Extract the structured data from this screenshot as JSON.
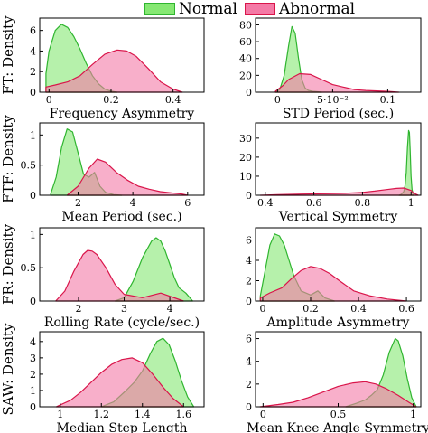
{
  "legend": {
    "entries": [
      {
        "name": "Normal",
        "fill": "#86e873",
        "stroke": "#2fb52f"
      },
      {
        "name": "Abnormal",
        "fill": "#f47aa6",
        "stroke": "#d9154a"
      }
    ]
  },
  "colors": {
    "normal_fill": "#86e873",
    "normal_stroke": "#2fb52f",
    "abnormal_fill": "#f47aa6",
    "abnormal_stroke": "#d9154a"
  },
  "row_labels": [
    "FT: Density",
    "FTF: Density",
    "FR: Density",
    "SAW: Density"
  ],
  "chart_data": [
    {
      "type": "area",
      "row": 0,
      "col": 0,
      "xlabel": "Frequency Asymmetry",
      "xlim": [
        -0.03,
        0.5
      ],
      "ylim": [
        0,
        7.2
      ],
      "xticks": [
        {
          "v": 0,
          "label": "0"
        },
        {
          "v": 0.2,
          "label": "0.2"
        },
        {
          "v": 0.4,
          "label": "0.4"
        }
      ],
      "yticks": [
        {
          "v": 0,
          "label": "0"
        },
        {
          "v": 2,
          "label": "2"
        },
        {
          "v": 4,
          "label": "4"
        },
        {
          "v": 6,
          "label": "6"
        }
      ],
      "series": [
        {
          "name": "Normal",
          "x": [
            -0.01,
            0.0,
            0.02,
            0.04,
            0.06,
            0.08,
            0.1,
            0.12,
            0.14,
            0.16,
            0.18,
            0.2,
            0.22
          ],
          "y": [
            1.8,
            4.0,
            6.0,
            6.6,
            6.3,
            5.4,
            4.2,
            2.8,
            1.6,
            0.8,
            0.3,
            0.1,
            0
          ]
        },
        {
          "name": "Abnormal",
          "x": [
            -0.01,
            0.02,
            0.06,
            0.1,
            0.14,
            0.18,
            0.22,
            0.25,
            0.28,
            0.32,
            0.36,
            0.4,
            0.43
          ],
          "y": [
            0.5,
            0.7,
            1.0,
            1.6,
            2.7,
            3.7,
            4.1,
            4.0,
            3.5,
            2.3,
            1.0,
            0.3,
            0
          ]
        }
      ]
    },
    {
      "type": "area",
      "row": 0,
      "col": 1,
      "xlabel": "STD Period (sec.)",
      "xlim": [
        -0.02,
        0.13
      ],
      "ylim": [
        0,
        88
      ],
      "xticks": [
        {
          "v": 0,
          "label": "0"
        },
        {
          "v": 0.05,
          "label": "5·10⁻²"
        },
        {
          "v": 0.1,
          "label": "0.1"
        }
      ],
      "yticks": [
        {
          "v": 0,
          "label": "0"
        },
        {
          "v": 20,
          "label": "20"
        },
        {
          "v": 40,
          "label": "40"
        },
        {
          "v": 60,
          "label": "60"
        },
        {
          "v": 80,
          "label": "80"
        }
      ],
      "series": [
        {
          "name": "Normal",
          "x": [
            -0.002,
            0.002,
            0.006,
            0.01,
            0.013,
            0.016,
            0.019,
            0.022,
            0.025,
            0.028,
            0.032,
            0.036,
            0.04
          ],
          "y": [
            0,
            3,
            20,
            55,
            78,
            70,
            40,
            15,
            5,
            2,
            1,
            0.5,
            0
          ]
        },
        {
          "name": "Abnormal",
          "x": [
            -0.002,
            0.005,
            0.01,
            0.02,
            0.03,
            0.04,
            0.05,
            0.06,
            0.07,
            0.08,
            0.09,
            0.1,
            0.11
          ],
          "y": [
            1,
            8,
            15,
            22,
            21,
            15,
            9,
            6,
            3,
            2,
            1.5,
            1,
            0
          ]
        }
      ]
    },
    {
      "type": "area",
      "row": 1,
      "col": 0,
      "xlabel": "Mean Period (sec.)",
      "xlim": [
        0.6,
        6.6
      ],
      "ylim": [
        0,
        1.2
      ],
      "xticks": [
        {
          "v": 2,
          "label": "2"
        },
        {
          "v": 4,
          "label": "4"
        },
        {
          "v": 6,
          "label": "6"
        }
      ],
      "yticks": [
        {
          "v": 0,
          "label": "0"
        },
        {
          "v": 0.5,
          "label": "0.5"
        },
        {
          "v": 1,
          "label": "1"
        }
      ],
      "series": [
        {
          "name": "Normal",
          "x": [
            1.0,
            1.2,
            1.4,
            1.6,
            1.8,
            2.0,
            2.2,
            2.4,
            2.6,
            2.8,
            3.0,
            3.3,
            3.6
          ],
          "y": [
            0.02,
            0.3,
            0.8,
            1.1,
            1.05,
            0.7,
            0.35,
            0.3,
            0.38,
            0.15,
            0.05,
            0.01,
            0
          ]
        },
        {
          "name": "Abnormal",
          "x": [
            1.6,
            2.0,
            2.4,
            2.7,
            3.0,
            3.4,
            3.8,
            4.2,
            4.6,
            5.0,
            5.4,
            5.8,
            6.0
          ],
          "y": [
            0,
            0.15,
            0.45,
            0.6,
            0.55,
            0.38,
            0.25,
            0.15,
            0.1,
            0.06,
            0.04,
            0.02,
            0
          ]
        }
      ]
    },
    {
      "type": "area",
      "row": 1,
      "col": 1,
      "xlabel": "Vertical Symmetry",
      "xlim": [
        0.36,
        1.04
      ],
      "ylim": [
        0,
        38
      ],
      "xticks": [
        {
          "v": 0.4,
          "label": "0.4"
        },
        {
          "v": 0.6,
          "label": "0.6"
        },
        {
          "v": 0.8,
          "label": "0.8"
        },
        {
          "v": 1,
          "label": "1"
        }
      ],
      "yticks": [
        {
          "v": 0,
          "label": "0"
        },
        {
          "v": 10,
          "label": "10"
        },
        {
          "v": 20,
          "label": "20"
        },
        {
          "v": 30,
          "label": "30"
        }
      ],
      "series": [
        {
          "name": "Normal",
          "x": [
            0.95,
            0.96,
            0.97,
            0.975,
            0.98,
            0.985,
            0.99,
            0.993,
            0.996,
            1.0,
            1.004,
            1.008,
            1.012
          ],
          "y": [
            0,
            0.5,
            2,
            5,
            12,
            25,
            34,
            33,
            24,
            10,
            3,
            1,
            0
          ]
        },
        {
          "name": "Abnormal",
          "x": [
            0.38,
            0.45,
            0.55,
            0.65,
            0.72,
            0.8,
            0.85,
            0.9,
            0.94,
            0.97,
            1.0,
            1.01,
            1.03
          ],
          "y": [
            0,
            0.3,
            0.6,
            0.8,
            1.0,
            1.5,
            2.2,
            3.0,
            3.6,
            3.8,
            2.5,
            1.2,
            0
          ]
        }
      ]
    },
    {
      "type": "area",
      "row": 2,
      "col": 0,
      "xlabel": "Rolling Rate (cycle/sec.)",
      "xlim": [
        1.15,
        4.75
      ],
      "ylim": [
        0,
        1.1
      ],
      "xticks": [
        {
          "v": 2,
          "label": "2"
        },
        {
          "v": 3,
          "label": "3"
        },
        {
          "v": 4,
          "label": "4"
        }
      ],
      "yticks": [
        {
          "v": 0,
          "label": "0"
        },
        {
          "v": 0.5,
          "label": "0.5"
        },
        {
          "v": 1,
          "label": "1"
        }
      ],
      "series": [
        {
          "name": "Normal",
          "x": [
            2.8,
            3.0,
            3.2,
            3.4,
            3.6,
            3.7,
            3.8,
            3.9,
            4.0,
            4.1,
            4.2,
            4.35,
            4.5
          ],
          "y": [
            0,
            0.05,
            0.3,
            0.65,
            0.9,
            0.95,
            0.9,
            0.75,
            0.55,
            0.35,
            0.2,
            0.12,
            0
          ]
        },
        {
          "name": "Abnormal",
          "x": [
            1.5,
            1.7,
            1.9,
            2.1,
            2.2,
            2.3,
            2.4,
            2.6,
            2.8,
            3.0,
            3.4,
            3.8,
            4.3
          ],
          "y": [
            0,
            0.15,
            0.45,
            0.7,
            0.76,
            0.75,
            0.7,
            0.5,
            0.25,
            0.1,
            0.05,
            0.12,
            0
          ]
        }
      ]
    },
    {
      "type": "area",
      "row": 2,
      "col": 1,
      "xlabel": "Amplitude Asymmetry",
      "xlim": [
        -0.03,
        0.66
      ],
      "ylim": [
        0,
        7.2
      ],
      "xticks": [
        {
          "v": 0,
          "label": "0"
        },
        {
          "v": 0.2,
          "label": "0.2"
        },
        {
          "v": 0.4,
          "label": "0.4"
        },
        {
          "v": 0.6,
          "label": "0.6"
        }
      ],
      "yticks": [
        {
          "v": 0,
          "label": "0"
        },
        {
          "v": 2,
          "label": "2"
        },
        {
          "v": 4,
          "label": "4"
        },
        {
          "v": 6,
          "label": "6"
        }
      ],
      "series": [
        {
          "name": "Normal",
          "x": [
            -0.01,
            0.01,
            0.03,
            0.05,
            0.07,
            0.09,
            0.11,
            0.13,
            0.16,
            0.2,
            0.23,
            0.26,
            0.3
          ],
          "y": [
            0.5,
            3.0,
            5.5,
            6.6,
            6.4,
            5.5,
            4.0,
            2.5,
            1.0,
            0.6,
            1.0,
            0.3,
            0
          ]
        },
        {
          "name": "Abnormal",
          "x": [
            -0.01,
            0.03,
            0.08,
            0.12,
            0.16,
            0.2,
            0.24,
            0.28,
            0.32,
            0.38,
            0.45,
            0.52,
            0.6
          ],
          "y": [
            0.3,
            0.8,
            1.3,
            2.2,
            3.0,
            3.4,
            3.2,
            2.7,
            2.0,
            1.0,
            0.5,
            0.2,
            0
          ]
        }
      ]
    },
    {
      "type": "area",
      "row": 3,
      "col": 0,
      "xlabel": "Median Step Length",
      "xlim": [
        0.9,
        1.7
      ],
      "ylim": [
        0,
        4.6
      ],
      "xticks": [
        {
          "v": 1,
          "label": "1"
        },
        {
          "v": 1.2,
          "label": "1.2"
        },
        {
          "v": 1.4,
          "label": "1.4"
        },
        {
          "v": 1.6,
          "label": "1.6"
        }
      ],
      "yticks": [
        {
          "v": 0,
          "label": "0"
        },
        {
          "v": 1,
          "label": "1"
        },
        {
          "v": 2,
          "label": "2"
        },
        {
          "v": 3,
          "label": "3"
        },
        {
          "v": 4,
          "label": "4"
        }
      ],
      "series": [
        {
          "name": "Normal",
          "x": [
            1.2,
            1.26,
            1.32,
            1.36,
            1.4,
            1.44,
            1.47,
            1.5,
            1.53,
            1.56,
            1.59,
            1.62,
            1.65
          ],
          "y": [
            0,
            0.3,
            1.0,
            1.5,
            2.2,
            3.3,
            4.0,
            4.2,
            3.8,
            2.8,
            1.6,
            0.6,
            0
          ]
        },
        {
          "name": "Abnormal",
          "x": [
            0.98,
            1.05,
            1.1,
            1.15,
            1.2,
            1.25,
            1.3,
            1.35,
            1.4,
            1.45,
            1.5,
            1.55,
            1.6
          ],
          "y": [
            0,
            0.4,
            0.9,
            1.5,
            2.1,
            2.6,
            2.9,
            3.0,
            2.7,
            2.0,
            1.2,
            0.5,
            0
          ]
        }
      ]
    },
    {
      "type": "area",
      "row": 3,
      "col": 1,
      "xlabel": "Mean Knee Angle Symmetry",
      "xlim": [
        -0.05,
        1.05
      ],
      "ylim": [
        0,
        6.6
      ],
      "xticks": [
        {
          "v": 0,
          "label": "0"
        },
        {
          "v": 0.5,
          "label": "0.5"
        },
        {
          "v": 1,
          "label": "1"
        }
      ],
      "yticks": [
        {
          "v": 0,
          "label": "0"
        },
        {
          "v": 2,
          "label": "2"
        },
        {
          "v": 4,
          "label": "4"
        },
        {
          "v": 6,
          "label": "6"
        }
      ],
      "series": [
        {
          "name": "Normal",
          "x": [
            0.55,
            0.62,
            0.68,
            0.72,
            0.76,
            0.8,
            0.84,
            0.88,
            0.9,
            0.93,
            0.96,
            0.99,
            1.02
          ],
          "y": [
            0,
            0.3,
            0.6,
            1.0,
            1.5,
            2.8,
            4.8,
            6.0,
            5.8,
            4.5,
            2.5,
            0.8,
            0
          ]
        },
        {
          "name": "Abnormal",
          "x": [
            -0.02,
            0.1,
            0.2,
            0.3,
            0.4,
            0.5,
            0.6,
            0.68,
            0.75,
            0.82,
            0.9,
            0.97,
            1.02
          ],
          "y": [
            0,
            0.2,
            0.4,
            0.8,
            1.3,
            1.8,
            2.1,
            2.2,
            2.0,
            1.6,
            1.0,
            0.4,
            0
          ]
        }
      ]
    }
  ]
}
